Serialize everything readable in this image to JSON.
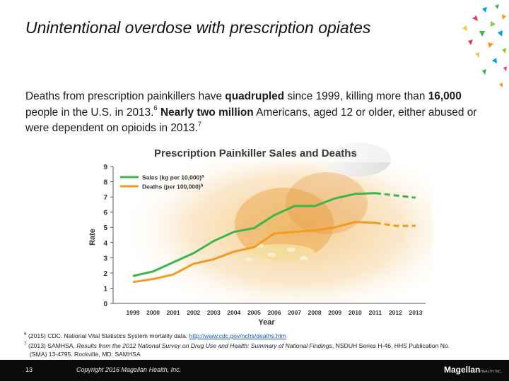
{
  "slide": {
    "title": "Unintentional overdose with prescription opiates",
    "body": {
      "p1": "Deaths from prescription painkillers have ",
      "b1": "quadrupled",
      "p2": " since 1999, killing more than ",
      "b2": "16,000",
      "p3": " people in the U.S. in 2013.",
      "sup1": "6",
      "p4": "  ",
      "b3": "Nearly two million",
      "p5": " Americans, aged 12 or older, either abused or were dependent on opioids in 2013.",
      "sup2": "7"
    }
  },
  "chart_data": {
    "type": "line",
    "title": "Prescription Painkiller Sales and Deaths",
    "xlabel": "Year",
    "ylabel": "Rate",
    "ylim": [
      0,
      9
    ],
    "x": [
      "1999",
      "2000",
      "2001",
      "2002",
      "2003",
      "2004",
      "2005",
      "2006",
      "2007",
      "2008",
      "2009",
      "2010",
      "2011",
      "2012",
      "2013"
    ],
    "series": [
      {
        "name": "Sales (kg per 10,000)",
        "sup": "a",
        "color": "#3cb54a",
        "values": [
          1.8,
          2.1,
          2.7,
          3.3,
          4.1,
          4.7,
          4.95,
          5.8,
          6.4,
          6.4,
          6.9,
          7.2,
          7.25,
          7.1,
          6.95
        ],
        "dashed_from": 12
      },
      {
        "name": "Deaths (per 100,000)",
        "sup": "b",
        "color": "#f39a1f",
        "values": [
          1.4,
          1.6,
          1.9,
          2.6,
          2.9,
          3.4,
          3.7,
          4.6,
          4.7,
          4.8,
          5.0,
          5.35,
          5.3,
          5.1,
          5.1
        ],
        "dashed_from": 12
      }
    ],
    "yticks": [
      "0",
      "1",
      "2",
      "3",
      "4",
      "5",
      "6",
      "7",
      "8",
      "9"
    ]
  },
  "footnotes": {
    "n1_sup": "6",
    "n1_text": " (2015) CDC. National Vital Statistics System mortality data. ",
    "n1_link": "http://www.cdc.gov/nchs/deaths.htm",
    "n2_sup": "7",
    "n2_a": " (2013) SAMHSA, ",
    "n2_italic": "Results from the 2012 National Survey on Drug Use and Health: Summary of National Findings",
    "n2_b": ", NSDUH Series H-46, HHS Publication No.",
    "n2_c": "(SMA) 13-4795. Rockville, MD: SAMHSA"
  },
  "footer": {
    "page": "13",
    "copyright": "Copyright 2016 Magellan Health, Inc.",
    "logo": "Magellan",
    "logo_sub": "HEALTH INC."
  }
}
